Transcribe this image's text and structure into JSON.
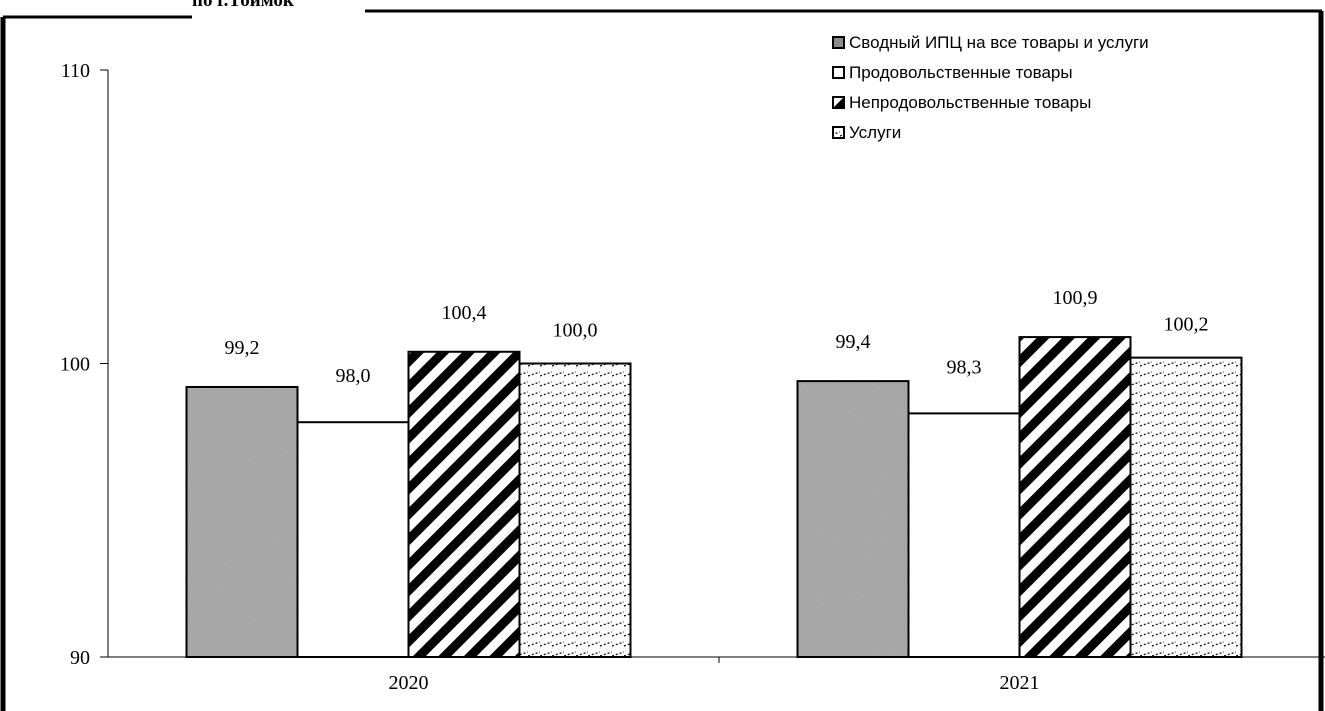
{
  "header_fragment": "по г.Тоймок",
  "chart_data": {
    "type": "bar",
    "categories": [
      "2020",
      "2021"
    ],
    "series": [
      {
        "name": "Сводный ИПЦ на все товары и услуги",
        "values": [
          99.2,
          99.4
        ],
        "labels": [
          "99,2",
          "99,4"
        ],
        "pattern": "granite"
      },
      {
        "name": "Продовольственные товары",
        "values": [
          98.0,
          98.3
        ],
        "labels": [
          "98,0",
          "98,3"
        ],
        "pattern": "white"
      },
      {
        "name": "Непродовольственные товары",
        "values": [
          100.4,
          100.9
        ],
        "labels": [
          "100,4",
          "100,9"
        ],
        "pattern": "diagonal"
      },
      {
        "name": "Услуги",
        "values": [
          100.0,
          100.2
        ],
        "labels": [
          "100,0",
          "100,2"
        ],
        "pattern": "dashes"
      }
    ],
    "ylim": [
      90,
      110
    ],
    "yticks": [
      "90",
      "100",
      "110"
    ],
    "legend_position": "top-right",
    "grid": false
  }
}
